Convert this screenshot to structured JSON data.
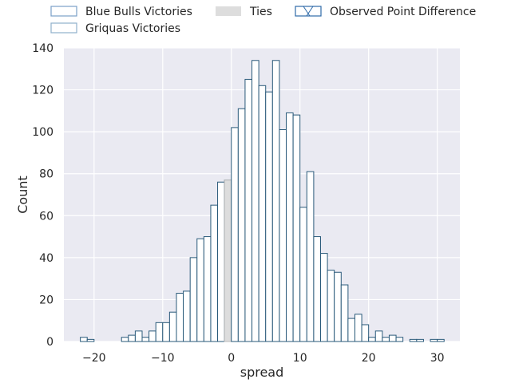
{
  "chart_data": {
    "type": "bar",
    "subtype": "histogram",
    "xlabel": "spread",
    "ylabel": "Count",
    "xlim": [
      -24.4,
      33.3
    ],
    "ylim": [
      0,
      140
    ],
    "bin_width": 1,
    "x_ticks": [
      -20,
      -10,
      0,
      10,
      20,
      30
    ],
    "x_tick_labels": [
      "−20",
      "−10",
      "0",
      "10",
      "20",
      "30"
    ],
    "y_ticks": [
      0,
      20,
      40,
      60,
      80,
      100,
      120,
      140
    ],
    "y_tick_labels": [
      "0",
      "20",
      "40",
      "60",
      "80",
      "100",
      "120",
      "140"
    ],
    "grid": true,
    "background": "#eaeaf2",
    "legend": {
      "placement": "above plot",
      "entries": [
        {
          "label": "Blue Bulls Victories",
          "style": "outline",
          "color": "#7a9fc8"
        },
        {
          "label": "Griquas Victories",
          "style": "outline",
          "color": "#8fb0cc"
        },
        {
          "label": "Ties",
          "style": "filled",
          "color": "#dddddd"
        },
        {
          "label": "Observed Point Difference",
          "style": "hatched",
          "color": "#2f6aa8"
        }
      ]
    },
    "series": [
      {
        "name": "Griquas Victories",
        "edge_color": "#2a5a7a",
        "fill_color": "#ffffff",
        "bins": [
          [
            -22,
            2
          ],
          [
            -21,
            1
          ],
          [
            -16,
            2
          ],
          [
            -15,
            3
          ],
          [
            -14,
            5
          ],
          [
            -13,
            2
          ],
          [
            -12,
            5
          ],
          [
            -11,
            9
          ],
          [
            -10,
            9
          ],
          [
            -9,
            14
          ],
          [
            -8,
            23
          ],
          [
            -7,
            24
          ],
          [
            -6,
            40
          ],
          [
            -5,
            49
          ],
          [
            -4,
            50
          ],
          [
            -3,
            65
          ],
          [
            -2,
            76
          ],
          [
            -1,
            77
          ]
        ]
      },
      {
        "name": "Ties",
        "edge_color": "#bbbbbb",
        "fill_color": "#dddddd",
        "bins": [
          [
            -1,
            77
          ]
        ]
      },
      {
        "name": "Blue Bulls Victories",
        "edge_color": "#2a5a7a",
        "fill_color": "#ffffff",
        "bins": [
          [
            0,
            102
          ],
          [
            1,
            111
          ],
          [
            2,
            125
          ],
          [
            3,
            134
          ],
          [
            4,
            122
          ],
          [
            5,
            119
          ],
          [
            6,
            134
          ],
          [
            7,
            101
          ],
          [
            8,
            109
          ],
          [
            9,
            108
          ],
          [
            10,
            64
          ],
          [
            11,
            81
          ],
          [
            12,
            50
          ],
          [
            13,
            42
          ],
          [
            14,
            34
          ],
          [
            15,
            33
          ],
          [
            16,
            27
          ],
          [
            17,
            11
          ],
          [
            18,
            13
          ],
          [
            19,
            8
          ],
          [
            20,
            2
          ],
          [
            21,
            5
          ],
          [
            22,
            2
          ],
          [
            23,
            3
          ],
          [
            24,
            2
          ],
          [
            26,
            1
          ],
          [
            27,
            1
          ],
          [
            29,
            1
          ],
          [
            30,
            1
          ]
        ]
      }
    ]
  }
}
